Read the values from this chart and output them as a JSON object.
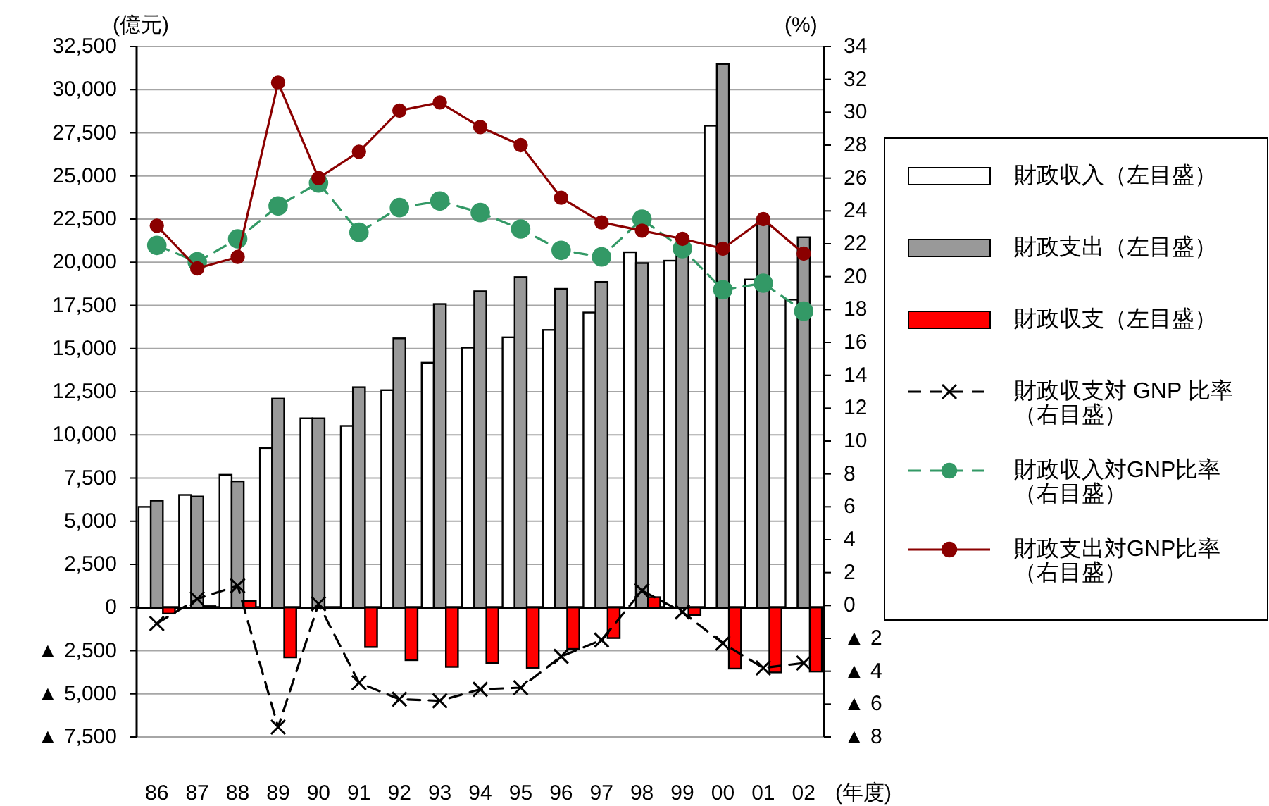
{
  "chart_data": {
    "type": "bar",
    "ylabel": "(億元)",
    "y2label": "(%)",
    "xlabel": "(年度)",
    "categories": [
      "86",
      "87",
      "88",
      "89",
      "90",
      "91",
      "92",
      "93",
      "94",
      "95",
      "96",
      "97",
      "98",
      "99",
      "00",
      "01",
      "02"
    ],
    "series": [
      {
        "name": "財政収入（左目盛）",
        "color": "#ffffff",
        "values": [
          5830,
          6520,
          7690,
          9240,
          10960,
          10520,
          12590,
          14180,
          15050,
          15650,
          16080,
          17090,
          20580,
          20090,
          27910,
          19000,
          17830
        ]
      },
      {
        "name": "財政支出（左目盛）",
        "color": "#999999",
        "values": [
          6190,
          6430,
          7310,
          12100,
          10960,
          12760,
          15590,
          17580,
          18320,
          19140,
          18460,
          18860,
          19950,
          20550,
          31490,
          22410,
          21450
        ]
      },
      {
        "name": "財政収支（左目盛）",
        "color": "#ff0000",
        "values": [
          -350,
          80,
          380,
          -2890,
          0,
          -2290,
          -3050,
          -3440,
          -3220,
          -3490,
          -2400,
          -1770,
          600,
          -440,
          -3540,
          -3760,
          -3710
        ]
      },
      {
        "name": "財政収支対 GNP 比率（右目盛）",
        "type": "line",
        "axis": "y2",
        "color": "#000000",
        "marker": "cross",
        "line_style": "dashed",
        "values": [
          -1.1,
          0.4,
          1.2,
          -7.4,
          0.1,
          -4.7,
          -5.7,
          -5.8,
          -5.1,
          -5.0,
          -3.1,
          -2.1,
          0.9,
          -0.4,
          -2.3,
          -3.8,
          -3.5
        ]
      },
      {
        "name": "財政収入対GNP比率（右目盛）",
        "type": "line",
        "axis": "y2",
        "color": "#339966",
        "marker": "circle",
        "line_style": "dashed",
        "values": [
          21.9,
          20.9,
          22.3,
          24.3,
          25.7,
          22.7,
          24.2,
          24.6,
          23.9,
          22.9,
          21.6,
          21.2,
          23.5,
          21.7,
          19.2,
          19.6,
          17.9
        ]
      },
      {
        "name": "財政支出対GNP比率（右目盛）",
        "type": "line",
        "axis": "y2",
        "color": "#8b0000",
        "marker": "circle",
        "line_style": "solid",
        "values": [
          23.1,
          20.5,
          21.2,
          31.8,
          26.0,
          27.6,
          30.1,
          30.6,
          29.1,
          28.0,
          24.8,
          23.3,
          22.8,
          22.3,
          21.7,
          23.5,
          21.4
        ]
      }
    ],
    "ylim": [
      -7500,
      32500
    ],
    "yticks": [
      {
        "value": -7500,
        "label": "▲ 7,500"
      },
      {
        "value": -5000,
        "label": "▲ 5,000"
      },
      {
        "value": -2500,
        "label": "▲ 2,500"
      },
      0,
      {
        "value": 2500,
        "label": "2,500"
      },
      {
        "value": 5000,
        "label": "5,000"
      },
      {
        "value": 7500,
        "label": "7,500"
      },
      {
        "value": 10000,
        "label": "10,000"
      },
      {
        "value": 12500,
        "label": "12,500"
      },
      {
        "value": 15000,
        "label": "15,000"
      },
      {
        "value": 17500,
        "label": "17,500"
      },
      {
        "value": 20000,
        "label": "20,000"
      },
      {
        "value": 22500,
        "label": "22,500"
      },
      {
        "value": 25000,
        "label": "25,000"
      },
      {
        "value": 27500,
        "label": "27,500"
      },
      {
        "value": 30000,
        "label": "30,000"
      },
      {
        "value": 32500,
        "label": "32,500"
      }
    ],
    "y2lim": [
      -8,
      34
    ],
    "y2ticks": [
      {
        "value": -8,
        "label": "▲ 8"
      },
      {
        "value": -6,
        "label": "▲ 6"
      },
      {
        "value": -4,
        "label": "▲ 4"
      },
      {
        "value": -2,
        "label": "▲ 2"
      },
      0,
      2,
      4,
      6,
      8,
      10,
      12,
      14,
      16,
      18,
      20,
      22,
      24,
      26,
      28,
      30,
      32,
      34
    ],
    "grid": "y",
    "legend": "right"
  }
}
